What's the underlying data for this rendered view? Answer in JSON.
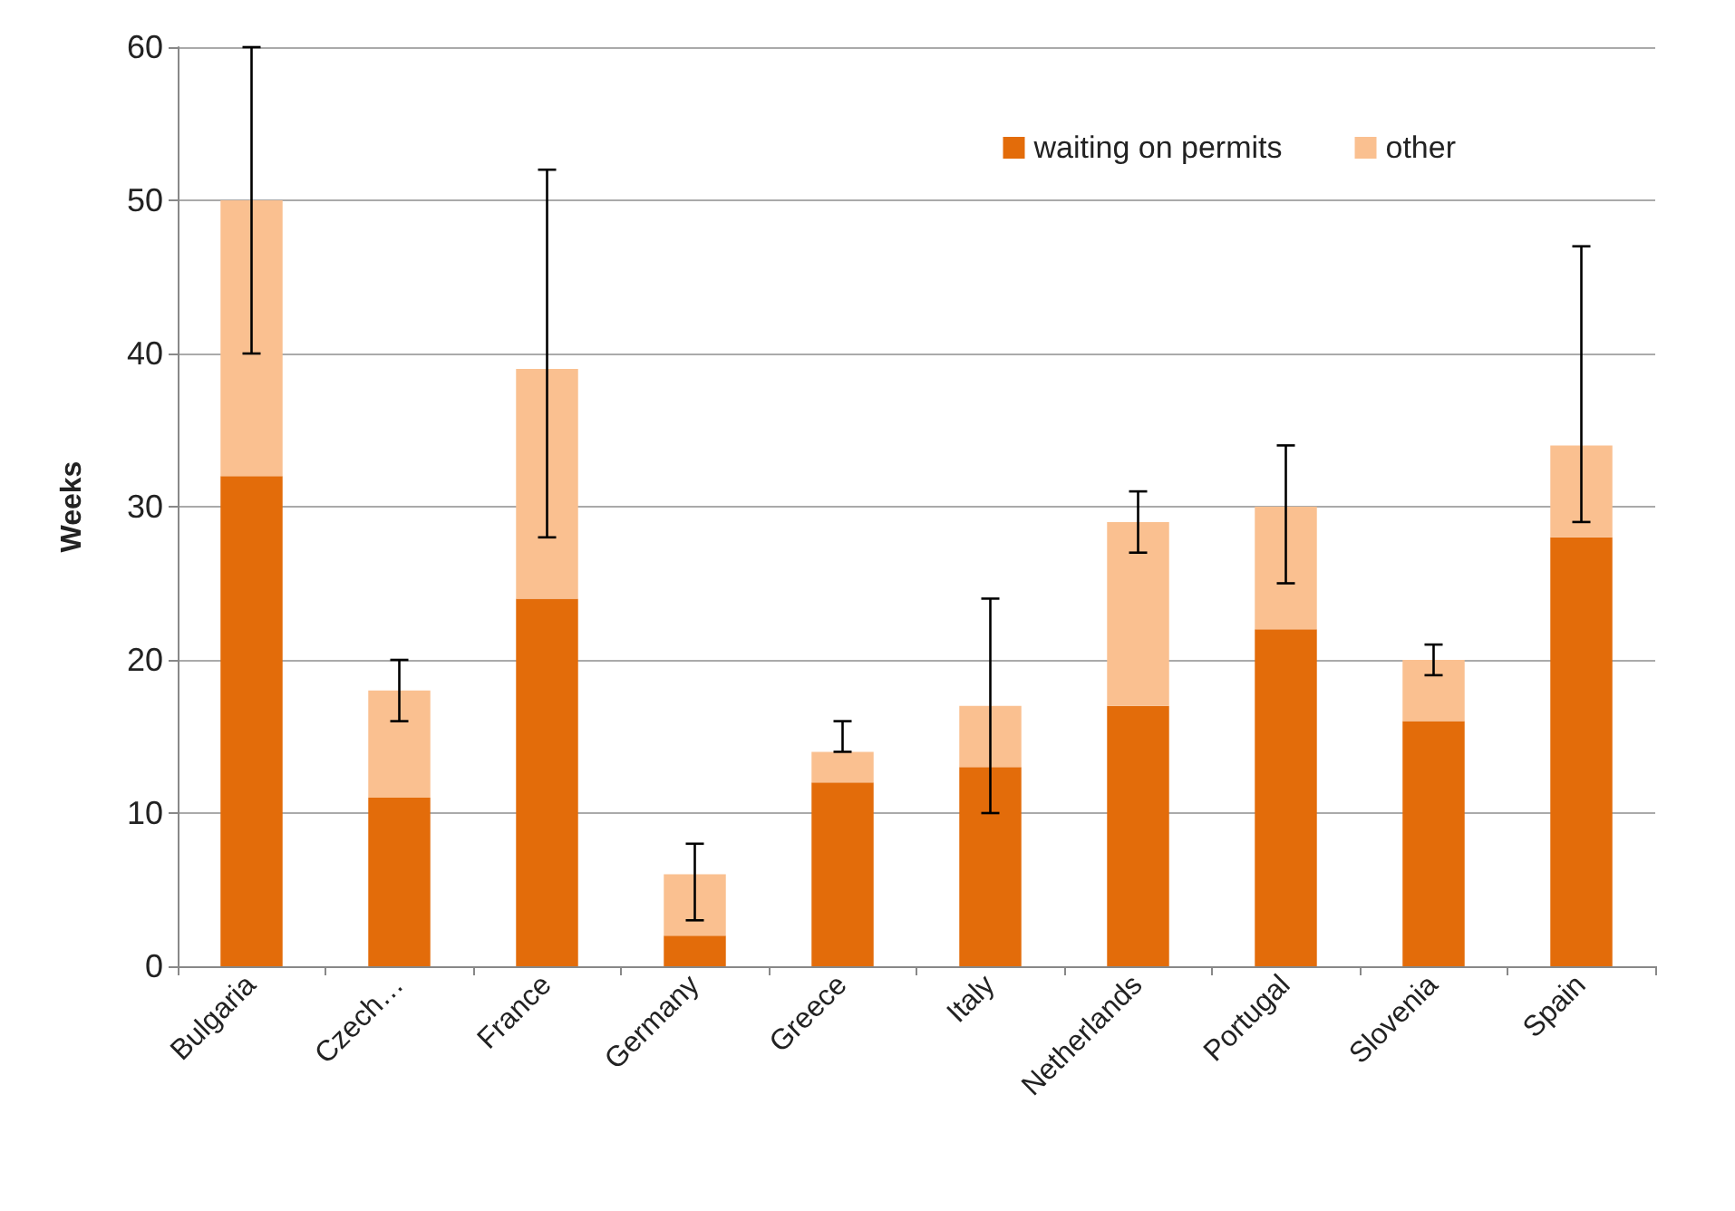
{
  "chart_data": {
    "type": "bar",
    "stacked": true,
    "ylabel": "Weeks",
    "categories": [
      "Bulgaria",
      "Czech…",
      "France",
      "Germany",
      "Greece",
      "Italy",
      "Netherlands",
      "Portugal",
      "Slovenia",
      "Spain"
    ],
    "series": [
      {
        "name": "waiting on permits",
        "color": "#e36c0a",
        "values": [
          32,
          11,
          24,
          2,
          12,
          13,
          17,
          22,
          16,
          28
        ]
      },
      {
        "name": "other",
        "color": "#fac090",
        "values": [
          18,
          7,
          15,
          4,
          2,
          4,
          12,
          8,
          4,
          6
        ],
        "errors": [
          [
            40,
            60
          ],
          [
            16,
            20
          ],
          [
            28,
            52
          ],
          [
            3,
            8
          ],
          [
            14,
            16
          ],
          [
            10,
            24
          ],
          [
            27,
            31
          ],
          [
            25,
            34
          ],
          [
            19,
            21
          ],
          [
            29,
            47
          ]
        ]
      }
    ],
    "ylim": [
      0,
      60
    ],
    "yticks": [
      0,
      10,
      20,
      30,
      40,
      50,
      60
    ],
    "grid": "y",
    "legend": "top right"
  }
}
